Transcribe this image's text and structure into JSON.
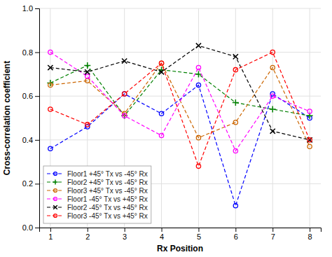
{
  "chart_data": {
    "type": "line",
    "x": [
      1,
      2,
      3,
      4,
      5,
      6,
      7,
      8
    ],
    "series": [
      {
        "name": "Floor1 +45° Tx vs -45° Rx",
        "color": "blue",
        "marker": "circle",
        "values": [
          0.36,
          0.46,
          0.61,
          0.52,
          0.65,
          0.1,
          0.61,
          0.5
        ]
      },
      {
        "name": "Floor2 +45° Tx vs -45° Rx",
        "color": "green",
        "marker": "plus",
        "values": [
          0.66,
          0.74,
          0.51,
          0.72,
          0.7,
          0.57,
          0.54,
          0.51
        ]
      },
      {
        "name": "Floor3 +45° Tx vs -45° Rx",
        "color": "#cc6600",
        "marker": "circle",
        "values": [
          0.65,
          0.67,
          0.52,
          0.75,
          0.41,
          0.48,
          0.73,
          0.37
        ]
      },
      {
        "name": "Floor1 -45° Tx vs +45° Rx",
        "color": "magenta",
        "marker": "circle",
        "values": [
          0.8,
          0.69,
          0.51,
          0.42,
          0.73,
          0.35,
          0.6,
          0.53
        ]
      },
      {
        "name": "Floor2 -45° Tx vs +45° Rx",
        "color": "black",
        "marker": "x",
        "values": [
          0.73,
          0.71,
          0.76,
          0.71,
          0.83,
          0.78,
          0.44,
          0.4
        ]
      },
      {
        "name": "Floor3 -45° Tx vs +45° Rx",
        "color": "red",
        "marker": "circle",
        "values": [
          0.54,
          0.47,
          0.61,
          0.75,
          0.28,
          0.72,
          0.8,
          0.4
        ]
      }
    ],
    "x_label": "Rx Position",
    "y_label": "Cross-correlation coefficient",
    "xlim": [
      0.7,
      8.3
    ],
    "ylim": [
      0,
      1.0
    ],
    "xticks": [
      1,
      2,
      3,
      4,
      5,
      6,
      7,
      8
    ],
    "yticks": [
      {
        "value": 0,
        "label": "0.0"
      },
      0.2,
      0.4,
      0.6,
      0.8,
      {
        "value": 1.0,
        "label": "1.0"
      }
    ],
    "line_style": "dashed",
    "grid": true,
    "legend": "lower left"
  }
}
